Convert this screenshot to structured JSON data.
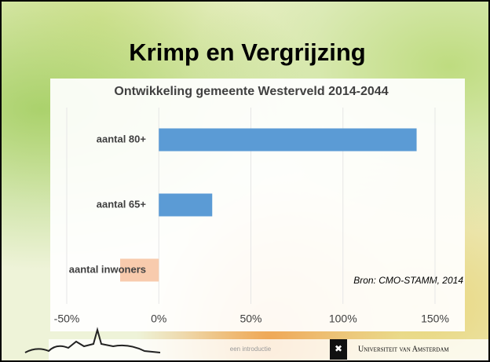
{
  "slide": {
    "title": "Krimp en Vergrijzing",
    "footer": "een introductie",
    "logo_text": "Universiteit van Amsterdam"
  },
  "chart_data": {
    "type": "bar",
    "orientation": "horizontal",
    "title": "Ontwikkeling gemeente Westerveld 2014-2044",
    "annotation": "Bron: CMO-STAMM, 2014",
    "categories": [
      "aantal 80+",
      "aantal 65+",
      "aantal inwoners"
    ],
    "values": [
      140,
      29,
      -21
    ],
    "colors": [
      "#5b9bd5",
      "#5b9bd5",
      "#f8cbad"
    ],
    "xlim": [
      -50,
      150
    ],
    "xticks": [
      {
        "value": -50,
        "label": "-50%"
      },
      {
        "value": 0,
        "label": "0%"
      },
      {
        "value": 50,
        "label": "50%"
      },
      {
        "value": 100,
        "label": "100%"
      },
      {
        "value": 150,
        "label": "150%"
      }
    ],
    "grid": true
  }
}
